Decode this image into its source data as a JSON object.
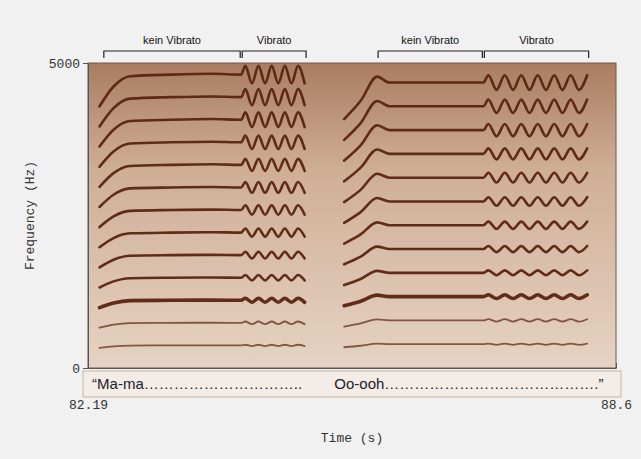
{
  "chart_data": {
    "type": "line",
    "x_label": "Time (s)",
    "y_label": "Frequency (Hz)",
    "color": "#5a2410",
    "xlim": [
      82.19,
      88.6
    ],
    "xticks": [
      82.19,
      88.6
    ],
    "ylim": [
      0,
      5000
    ],
    "yticks": [
      0,
      5000
    ],
    "annotations": [
      {
        "text": "kein Vibrato",
        "x": [
          82.37,
          84.05
        ]
      },
      {
        "text": "Vibrato",
        "x": [
          84.05,
          84.85
        ]
      },
      {
        "text": "kein Vibrato",
        "x": [
          85.7,
          86.99
        ]
      },
      {
        "text": "Vibrato",
        "x": [
          86.99,
          88.28
        ]
      }
    ],
    "captions": [
      {
        "text": "“Ma-ma…………………………..",
        "x": 82.24
      },
      {
        "text": "Oo-ooh…………………………………….”",
        "x": 85.18
      }
    ],
    "x": [
      82.33,
      82.5,
      82.7,
      83.2,
      83.7,
      84.05,
      84.1,
      84.18,
      84.26,
      84.34,
      84.42,
      84.5,
      84.58,
      84.66,
      84.74,
      84.82,
      85.05,
      85.3,
      85.5,
      85.7,
      85.85,
      86.4,
      86.99,
      87.05,
      87.15,
      87.25,
      87.35,
      87.45,
      87.55,
      87.65,
      87.75,
      87.85,
      87.95,
      88.05,
      88.15,
      88.25
    ],
    "series": [
      {
        "values": [
          330,
          355,
          368,
          370,
          371,
          370,
          381,
          359,
          381,
          359,
          381,
          359,
          381,
          359,
          381,
          359,
          null,
          340,
          365,
          398,
          390,
          390,
          390,
          400,
          380,
          400,
          380,
          400,
          380,
          400,
          380,
          400,
          380,
          400,
          380,
          400
        ]
      },
      {
        "values": [
          660,
          710,
          736,
          740,
          742,
          740,
          762,
          718,
          762,
          718,
          762,
          718,
          762,
          718,
          762,
          718,
          null,
          680,
          730,
          796,
          780,
          780,
          780,
          800,
          760,
          800,
          760,
          800,
          760,
          800,
          760,
          800,
          760,
          800,
          760,
          800
        ]
      },
      {
        "values": [
          990,
          1065,
          1104,
          1110,
          1113,
          1110,
          1143,
          1077,
          1143,
          1077,
          1143,
          1077,
          1143,
          1077,
          1143,
          1077,
          null,
          1020,
          1095,
          1194,
          1170,
          1170,
          1170,
          1200,
          1140,
          1200,
          1140,
          1200,
          1140,
          1200,
          1140,
          1200,
          1140,
          1200,
          1140,
          1200
        ]
      },
      {
        "values": [
          1320,
          1420,
          1472,
          1480,
          1484,
          1480,
          1524,
          1436,
          1524,
          1436,
          1524,
          1436,
          1524,
          1436,
          1524,
          1436,
          null,
          1360,
          1460,
          1592,
          1560,
          1560,
          1560,
          1600,
          1520,
          1600,
          1520,
          1600,
          1520,
          1600,
          1520,
          1600,
          1520,
          1600,
          1520,
          1600
        ]
      },
      {
        "values": [
          1650,
          1775,
          1840,
          1850,
          1855,
          1850,
          1905,
          1795,
          1905,
          1795,
          1905,
          1795,
          1905,
          1795,
          1905,
          1795,
          null,
          1700,
          1825,
          1990,
          1950,
          1950,
          1950,
          2000,
          1900,
          2000,
          1900,
          2000,
          1900,
          2000,
          1900,
          2000,
          1900,
          2000,
          1900,
          2000
        ]
      },
      {
        "values": [
          1980,
          2130,
          2208,
          2220,
          2226,
          2220,
          2286,
          2154,
          2286,
          2154,
          2286,
          2154,
          2286,
          2154,
          2286,
          2154,
          null,
          2040,
          2190,
          2388,
          2340,
          2340,
          2340,
          2400,
          2280,
          2400,
          2280,
          2400,
          2280,
          2400,
          2280,
          2400,
          2280,
          2400,
          2280,
          2400
        ]
      },
      {
        "values": [
          2310,
          2485,
          2576,
          2590,
          2597,
          2590,
          2667,
          2513,
          2667,
          2513,
          2667,
          2513,
          2667,
          2513,
          2667,
          2513,
          null,
          2380,
          2555,
          2786,
          2730,
          2730,
          2730,
          2800,
          2660,
          2800,
          2660,
          2800,
          2660,
          2800,
          2660,
          2800,
          2660,
          2800,
          2660,
          2800
        ]
      },
      {
        "values": [
          2640,
          2840,
          2944,
          2960,
          2968,
          2960,
          3048,
          2872,
          3048,
          2872,
          3048,
          2872,
          3048,
          2872,
          3048,
          2872,
          null,
          2720,
          2920,
          3184,
          3120,
          3120,
          3120,
          3200,
          3040,
          3200,
          3040,
          3200,
          3040,
          3200,
          3040,
          3200,
          3040,
          3200,
          3040,
          3200
        ]
      },
      {
        "values": [
          2970,
          3195,
          3312,
          3330,
          3339,
          3330,
          3429,
          3231,
          3429,
          3231,
          3429,
          3231,
          3429,
          3231,
          3429,
          3231,
          null,
          3060,
          3285,
          3582,
          3510,
          3510,
          3510,
          3600,
          3420,
          3600,
          3420,
          3600,
          3420,
          3600,
          3420,
          3600,
          3420,
          3600,
          3420,
          3600
        ]
      },
      {
        "values": [
          3300,
          3550,
          3680,
          3700,
          3710,
          3700,
          3810,
          3590,
          3810,
          3590,
          3810,
          3590,
          3810,
          3590,
          3810,
          3590,
          null,
          3400,
          3650,
          3980,
          3900,
          3900,
          3900,
          4000,
          3800,
          4000,
          3800,
          4000,
          3800,
          4000,
          3800,
          4000,
          3800,
          4000,
          3800,
          4000
        ]
      },
      {
        "values": [
          3630,
          3905,
          4048,
          4070,
          4081,
          4070,
          4191,
          3949,
          4191,
          3949,
          4191,
          3949,
          4191,
          3949,
          4191,
          3949,
          null,
          3740,
          4015,
          4378,
          4290,
          4290,
          4290,
          4400,
          4180,
          4400,
          4180,
          4400,
          4180,
          4400,
          4180,
          4400,
          4180,
          4400,
          4180,
          4400
        ]
      },
      {
        "values": [
          3960,
          4260,
          4416,
          4440,
          4452,
          4440,
          4572,
          4308,
          4572,
          4308,
          4572,
          4308,
          4572,
          4308,
          4572,
          4308,
          null,
          4080,
          4380,
          4776,
          4680,
          4680,
          4680,
          4800,
          4560,
          4800,
          4560,
          4800,
          4560,
          4800,
          4560,
          4800,
          4560,
          4800,
          4560,
          4800
        ]
      },
      {
        "values": [
          4290,
          4615,
          4784,
          4810,
          4823,
          4810,
          4953,
          4667,
          4953,
          4667,
          4953,
          4667,
          4953,
          4667,
          4953,
          4667,
          null,
          null,
          null,
          null,
          null,
          null,
          null,
          null,
          null,
          null,
          null,
          null,
          null,
          null,
          null,
          null,
          null,
          null,
          null,
          null
        ]
      }
    ]
  }
}
